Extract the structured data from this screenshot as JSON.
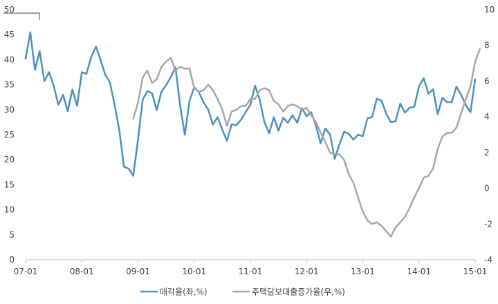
{
  "chart_data": {
    "type": "line",
    "x_tick_labels": [
      "07-01",
      "08-01",
      "09-01",
      "10-01",
      "11-01",
      "12-01",
      "13-01",
      "14-01",
      "15-01"
    ],
    "left_axis": {
      "ticks": [
        "0",
        "5",
        "10",
        "15",
        "20",
        "25",
        "30",
        "35",
        "40",
        "45",
        "50"
      ],
      "ylim": [
        0,
        50
      ]
    },
    "right_axis": {
      "ticks": [
        "-4",
        "-2",
        "0",
        "2",
        "4",
        "6",
        "8",
        "10"
      ],
      "ylim": [
        -4,
        10
      ]
    },
    "legend_position": "bottom",
    "grid": false,
    "series": [
      {
        "name": "매각율(좌,%)",
        "axis": "left",
        "color": "#4a90c0",
        "x_start": "2007-01",
        "values": [
          40.2,
          45.5,
          38.0,
          41.7,
          35.7,
          37.5,
          34.8,
          31.0,
          33.0,
          29.7,
          34.0,
          30.8,
          37.5,
          37.2,
          40.5,
          42.6,
          40.0,
          37.0,
          35.5,
          31.0,
          26.0,
          18.6,
          18.2,
          16.8,
          24.0,
          32.0,
          33.7,
          33.3,
          29.9,
          33.6,
          34.9,
          36.5,
          38.5,
          30.8,
          25.0,
          31.8,
          34.5,
          33.5,
          31.5,
          30.0,
          27.0,
          28.5,
          26.0,
          23.8,
          27.1,
          26.9,
          28.0,
          29.5,
          31.0,
          34.8,
          32.0,
          27.5,
          25.3,
          28.5,
          25.8,
          28.4,
          27.4,
          28.9,
          27.4,
          30.3,
          28.7,
          29.5,
          26.8,
          23.3,
          26.2,
          25.1,
          20.2,
          23.0,
          25.6,
          25.2,
          24.0,
          25.0,
          24.7,
          28.3,
          28.5,
          32.2,
          31.8,
          29.2,
          27.5,
          27.7,
          31.2,
          29.4,
          30.4,
          30.6,
          34.7,
          36.3,
          33.2,
          34.1,
          29.1,
          32.4,
          31.5,
          31.5,
          34.6,
          33.0,
          30.9,
          29.5,
          36.1
        ]
      },
      {
        "name": "주택담보대출증가율(우,%)",
        "axis": "right",
        "color": "#a6a6a6",
        "x_start": "2008-12",
        "values": [
          3.9,
          4.8,
          6.2,
          6.6,
          5.9,
          6.1,
          6.8,
          7.1,
          7.3,
          6.6,
          6.8,
          6.7,
          6.7,
          5.6,
          5.4,
          5.5,
          5.8,
          5.5,
          5.0,
          4.4,
          3.5,
          4.3,
          4.4,
          4.6,
          4.6,
          5.0,
          5.0,
          5.5,
          5.6,
          5.5,
          4.9,
          4.7,
          4.3,
          4.6,
          4.7,
          4.6,
          4.4,
          4.5,
          4.1,
          3.7,
          3.1,
          2.6,
          2.0,
          1.9,
          1.9,
          1.6,
          0.8,
          0.3,
          -0.5,
          -1.3,
          -1.8,
          -2.0,
          -1.9,
          -2.1,
          -2.4,
          -2.7,
          -2.2,
          -1.9,
          -1.6,
          -1.1,
          -0.5,
          0.0,
          0.6,
          0.7,
          1.1,
          2.2,
          2.9,
          3.1,
          3.1,
          3.4,
          4.2,
          5.0,
          5.7,
          7.1,
          7.8
        ]
      }
    ]
  }
}
